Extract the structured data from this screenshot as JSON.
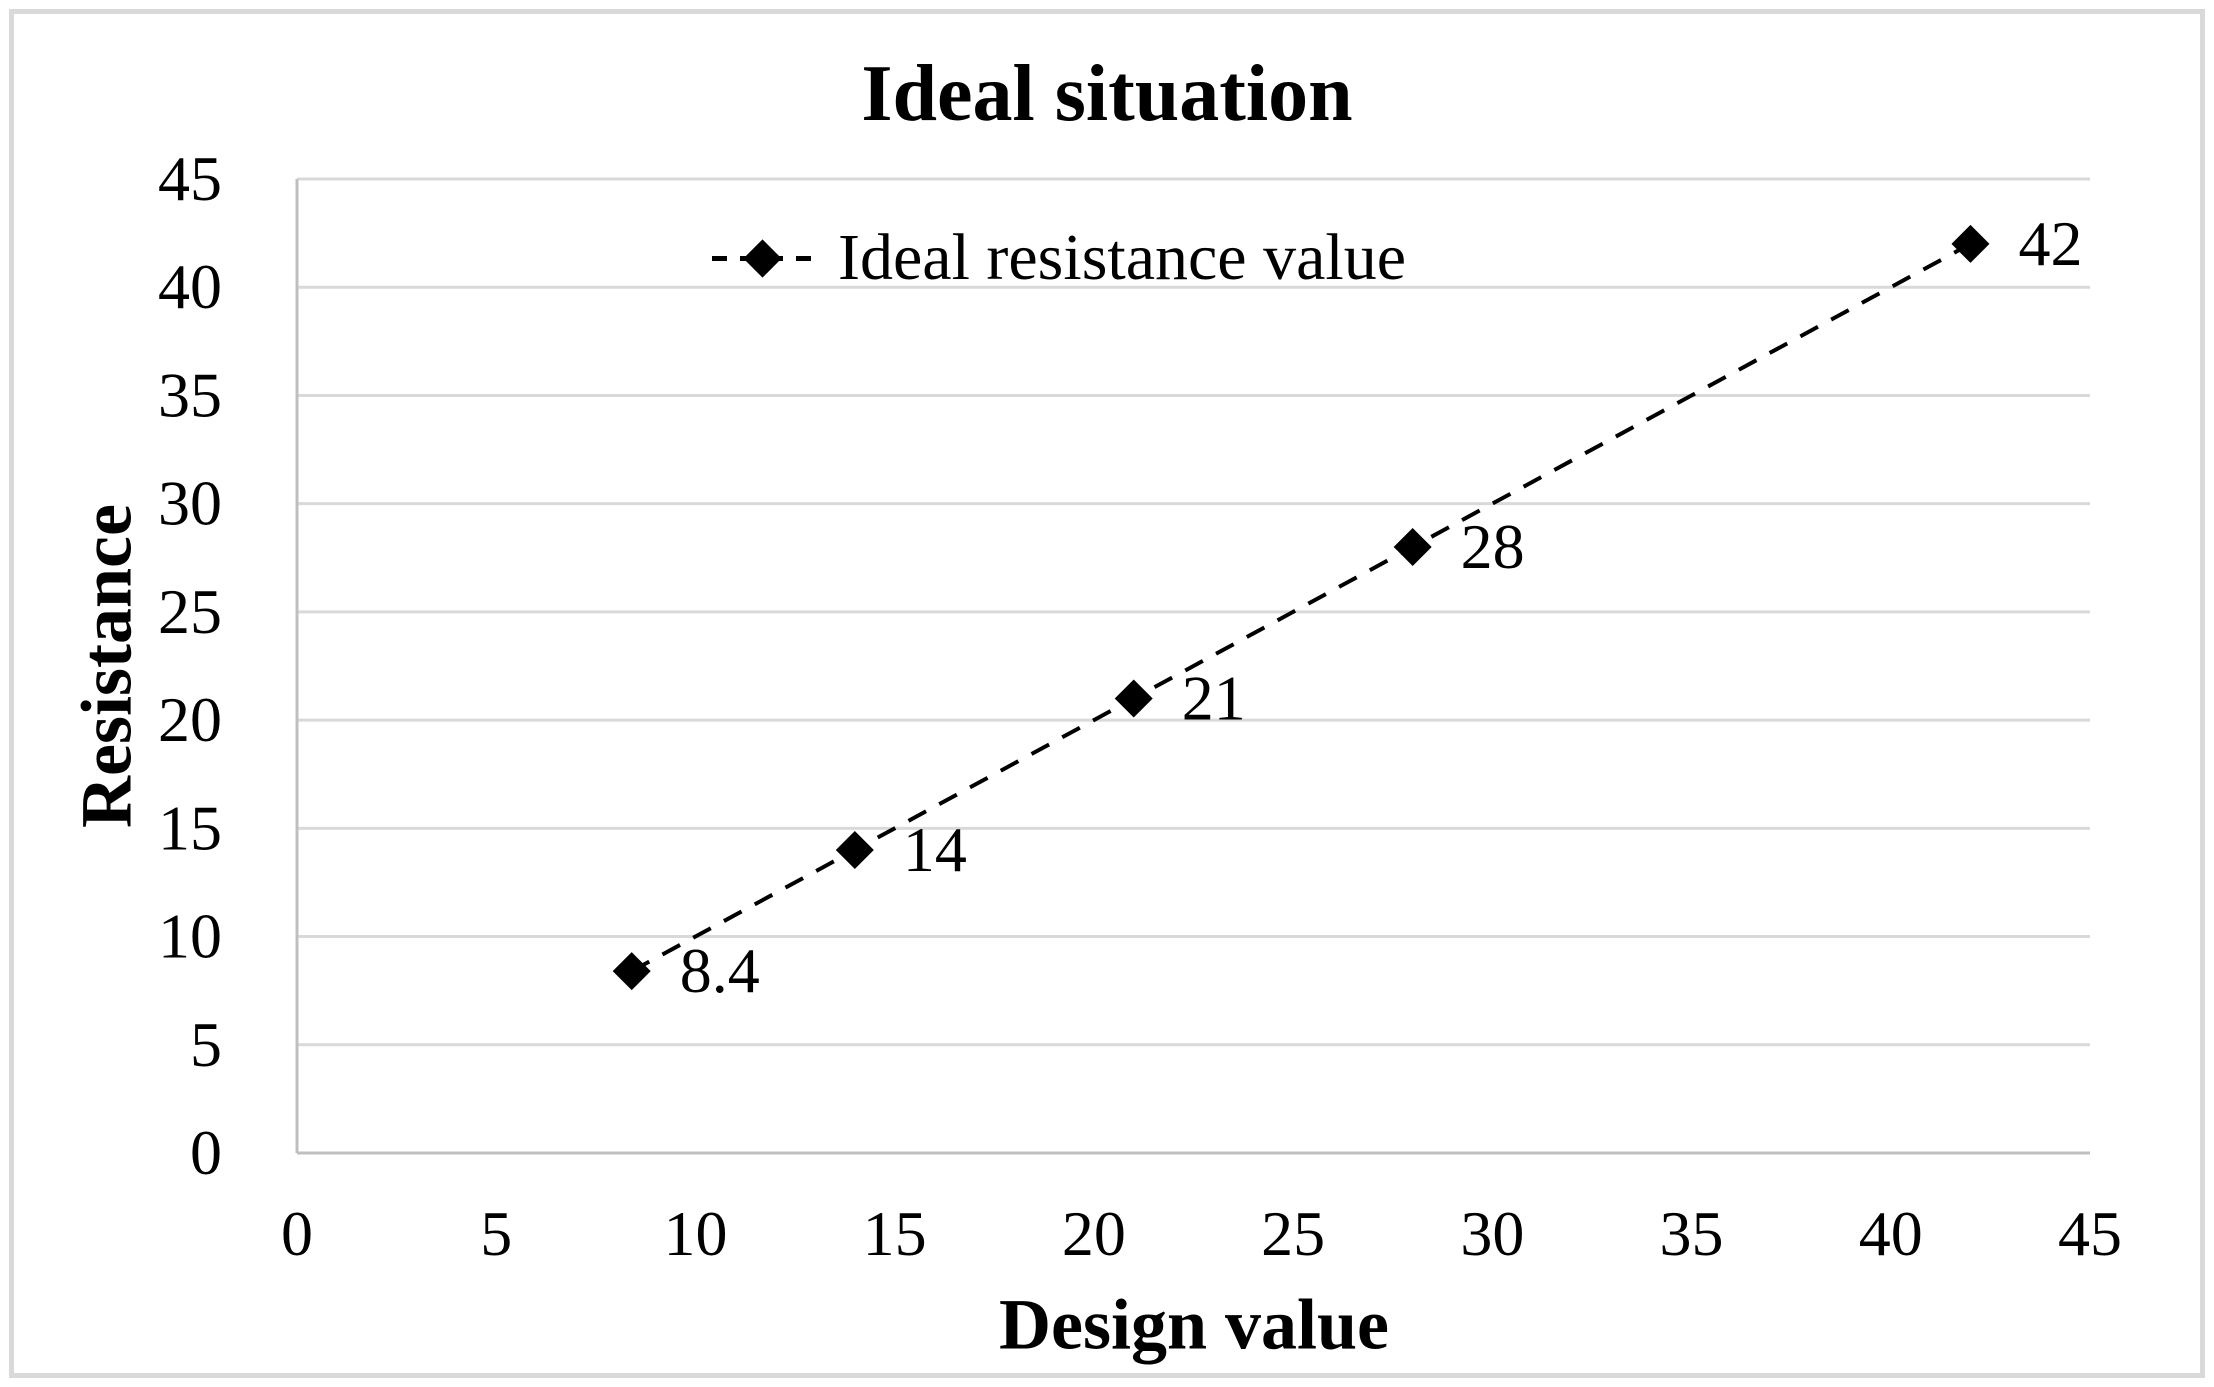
{
  "figure": {
    "background": "#FFFFFF",
    "frame_color": "#D9D9D9"
  },
  "chart_data": {
    "type": "line",
    "title": "Ideal situation",
    "xlabel": "Design value",
    "ylabel": "Resistance",
    "xlim": [
      0,
      45
    ],
    "ylim": [
      0,
      45
    ],
    "xticks": [
      0,
      5,
      10,
      15,
      20,
      25,
      30,
      35,
      40,
      45
    ],
    "yticks": [
      0,
      5,
      10,
      15,
      20,
      25,
      30,
      35,
      40,
      45
    ],
    "grid": "horizontal",
    "legend": {
      "position": "top-center",
      "label": "Ideal resistance value"
    },
    "series": [
      {
        "name": "Ideal resistance value",
        "marker": "diamond",
        "line_style": "dashed",
        "points": [
          {
            "x": 8.4,
            "y": 8.4,
            "label": "8.4"
          },
          {
            "x": 14,
            "y": 14,
            "label": "14"
          },
          {
            "x": 21,
            "y": 21,
            "label": "21"
          },
          {
            "x": 28,
            "y": 28,
            "label": "28"
          },
          {
            "x": 42,
            "y": 42,
            "label": "42"
          }
        ]
      }
    ],
    "colors": {
      "text": "#000000",
      "gridline": "#D9D9D9",
      "axis_line": "#BFBFBF",
      "series": "#000000"
    }
  }
}
